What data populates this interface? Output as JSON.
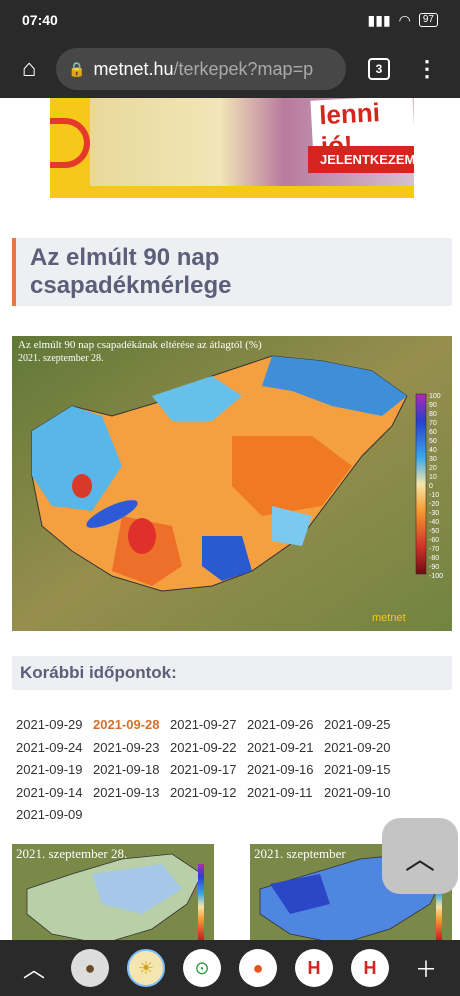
{
  "status": {
    "time": "07:40",
    "battery": "97"
  },
  "browser": {
    "host": "metnet.hu",
    "path": "/terkepek?map=p",
    "tab_count": "3"
  },
  "ad": {
    "slogan": "lenni jó!",
    "cta": "JELENTKEZEM"
  },
  "section": {
    "title_line1": "Az elmúlt 90 nap",
    "title_line2": "csapadékmérlege"
  },
  "map": {
    "title": "Az elmúlt 90 nap csapadékának eltérése az átlagtól (%)",
    "date": "2021. szeptember 28.",
    "legend": [
      "100",
      "90",
      "80",
      "70",
      "60",
      "50",
      "40",
      "30",
      "20",
      "10",
      "0",
      "-10",
      "-20",
      "-30",
      "-40",
      "-50",
      "-60",
      "-70",
      "-80",
      "-90",
      "-100"
    ],
    "brand": "metnet"
  },
  "earlier": {
    "title": "Korábbi időpontok:",
    "dates": [
      "2021-09-29",
      "2021-09-28",
      "2021-09-27",
      "2021-09-26",
      "2021-09-25",
      "2021-09-24",
      "2021-09-23",
      "2021-09-22",
      "2021-09-21",
      "2021-09-20",
      "2021-09-19",
      "2021-09-18",
      "2021-09-17",
      "2021-09-16",
      "2021-09-15",
      "2021-09-14",
      "2021-09-13",
      "2021-09-12",
      "2021-09-11",
      "2021-09-10",
      "2021-09-09"
    ],
    "active_index": 1
  },
  "thumbs": [
    {
      "date": "2021. szeptember 28."
    },
    {
      "date": "2021. szeptember"
    }
  ],
  "colors": {
    "accent": "#e07b3c",
    "active_date": "#d4702c",
    "heading_text": "#5b5f79"
  }
}
